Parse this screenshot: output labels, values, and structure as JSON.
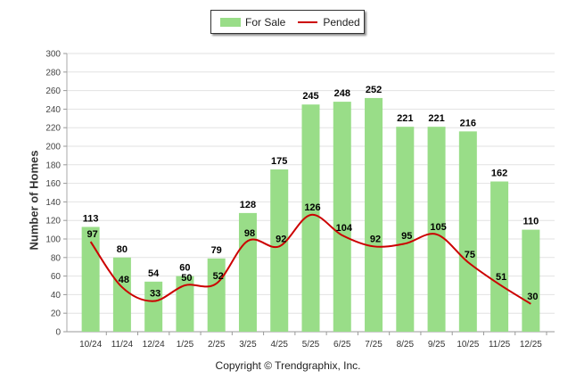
{
  "chart_data": {
    "type": "bar",
    "categories": [
      "10/24",
      "11/24",
      "12/24",
      "1/25",
      "2/25",
      "3/25",
      "4/25",
      "5/25",
      "6/25",
      "7/25",
      "8/25",
      "9/25",
      "10/25",
      "11/25",
      "12/25"
    ],
    "series": [
      {
        "name": "For Sale",
        "type": "bar",
        "color": "#99dd88",
        "values": [
          113,
          80,
          54,
          60,
          79,
          128,
          175,
          245,
          248,
          252,
          221,
          221,
          216,
          162,
          110
        ]
      },
      {
        "name": "Pended",
        "type": "line",
        "color": "#cc0000",
        "values": [
          97,
          48,
          33,
          50,
          52,
          98,
          92,
          126,
          104,
          92,
          95,
          105,
          75,
          51,
          30
        ]
      }
    ],
    "ylabel": "Number of Homes",
    "xlabel": "",
    "ylim": [
      0,
      300
    ],
    "yticks": [
      0,
      20,
      40,
      60,
      80,
      100,
      120,
      140,
      160,
      180,
      200,
      220,
      240,
      260,
      280,
      300
    ],
    "grid": true,
    "legend": "top-center"
  },
  "legend": {
    "for_sale_label": "For Sale",
    "pended_label": "Pended",
    "for_sale_color": "#99dd88",
    "pended_color": "#cc0000"
  },
  "footer": {
    "copyright": "Copyright © Trendgraphix, Inc."
  }
}
